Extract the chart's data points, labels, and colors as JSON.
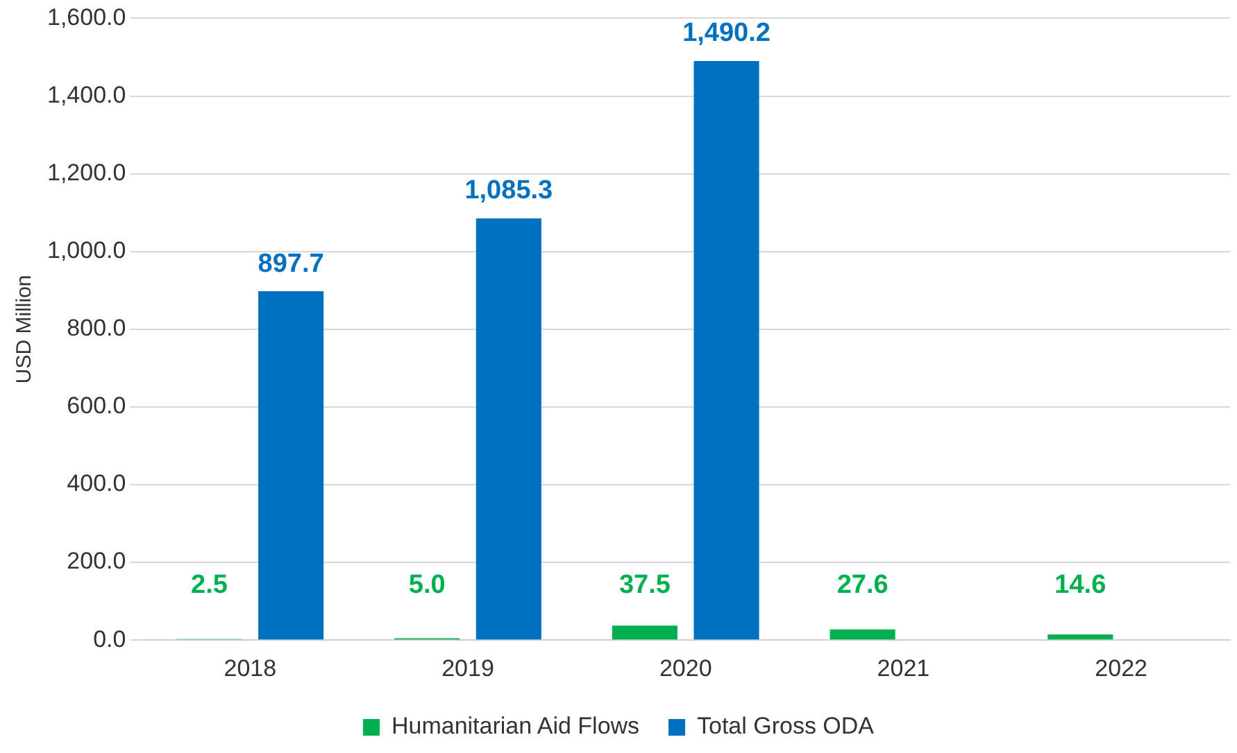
{
  "chart_data": {
    "type": "bar",
    "ylabel": "USD Million",
    "categories": [
      "2018",
      "2019",
      "2020",
      "2021",
      "2022"
    ],
    "series": [
      {
        "name": "Humanitarian Aid Flows",
        "color": "#00b050",
        "values": [
          2.5,
          5.0,
          37.5,
          27.6,
          14.6
        ],
        "value_labels": [
          "2.5",
          "5.0",
          "37.5",
          "27.6",
          "14.6"
        ]
      },
      {
        "name": "Total Gross ODA",
        "color": "#0070c0",
        "values": [
          897.7,
          1085.3,
          1490.2,
          null,
          null
        ],
        "value_labels": [
          "897.7",
          "1,085.3",
          "1,490.2",
          null,
          null
        ]
      }
    ],
    "ylim": [
      0,
      1600
    ],
    "yticks": [
      {
        "value": 0,
        "label": "0.0"
      },
      {
        "value": 200,
        "label": "200.0"
      },
      {
        "value": 400,
        "label": "400.0"
      },
      {
        "value": 600,
        "label": "600.0"
      },
      {
        "value": 800,
        "label": "800.0"
      },
      {
        "value": 1000,
        "label": "1,000.0"
      },
      {
        "value": 1200,
        "label": "1,200.0"
      },
      {
        "value": 1400,
        "label": "1,400.0"
      },
      {
        "value": 1600,
        "label": "1,600.0"
      }
    ],
    "grid": "y",
    "legend": "bottom"
  }
}
